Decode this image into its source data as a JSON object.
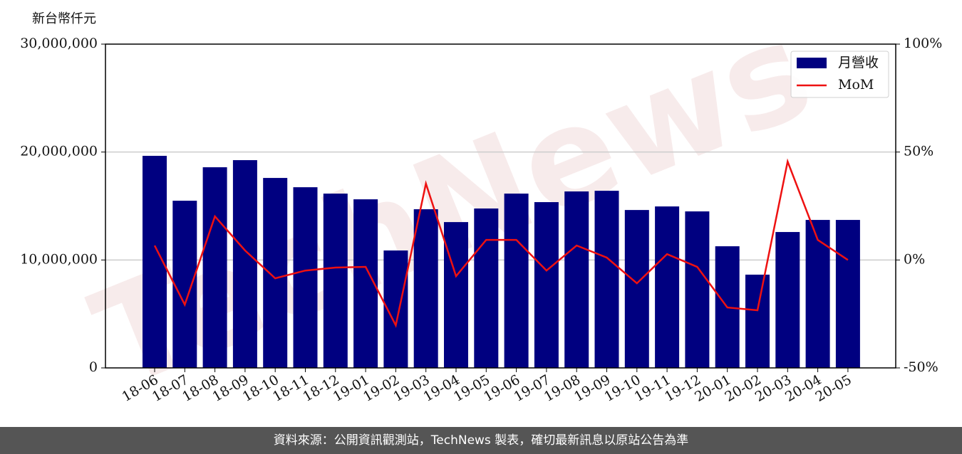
{
  "chart_data": {
    "type": "bar_line",
    "y_label": "新台幣仟元",
    "watermark": "TechNews",
    "footer": "資料來源：公開資訊觀測站，TechNews 製表，確切最新訊息以原站公告為準",
    "categories": [
      "18-06",
      "18-07",
      "18-08",
      "18-09",
      "18-10",
      "18-11",
      "18-12",
      "19-01",
      "19-02",
      "19-03",
      "19-04",
      "19-05",
      "19-06",
      "19-07",
      "19-08",
      "19-09",
      "19-10",
      "19-11",
      "19-12",
      "20-01",
      "20-02",
      "20-03",
      "20-04",
      "20-05"
    ],
    "series": [
      {
        "name": "月營收",
        "color": "#000080",
        "kind": "bar",
        "values": [
          19650000,
          15490000,
          18590000,
          19250000,
          17600000,
          16740000,
          16150000,
          15620000,
          10880000,
          14700000,
          13510000,
          14770000,
          16150000,
          15360000,
          16350000,
          16410000,
          14630000,
          14960000,
          14500000,
          11270000,
          8640000,
          12590000,
          13710000,
          13710000
        ]
      },
      {
        "name": "MoM",
        "color": "#ee1111",
        "kind": "line",
        "axis": "y2",
        "values": [
          6.7,
          -20.7,
          20.2,
          4.4,
          -8.5,
          -4.9,
          -3.5,
          -3.2,
          -30.3,
          35.4,
          -7.5,
          9.3,
          9.3,
          -4.9,
          6.7,
          1.1,
          -10.8,
          2.7,
          -3.2,
          -22.0,
          -23.3,
          45.6,
          9.3,
          0.0
        ]
      }
    ],
    "ylim": [
      0,
      30000000
    ],
    "yticks": [
      0,
      {
        "value": 10000000,
        "label": "10,000,000"
      },
      {
        "value": 20000000,
        "label": "20,000,000"
      },
      {
        "value": 30000000,
        "label": "30,000,000"
      }
    ],
    "y2lim": [
      -50,
      100
    ],
    "y2ticks": [
      {
        "value": -50,
        "label": "-50%"
      },
      {
        "value": 0,
        "label": "0%"
      },
      {
        "value": 50,
        "label": "50%"
      },
      {
        "value": 100,
        "label": "100%"
      }
    ],
    "grid": true,
    "legend": "upper right"
  }
}
